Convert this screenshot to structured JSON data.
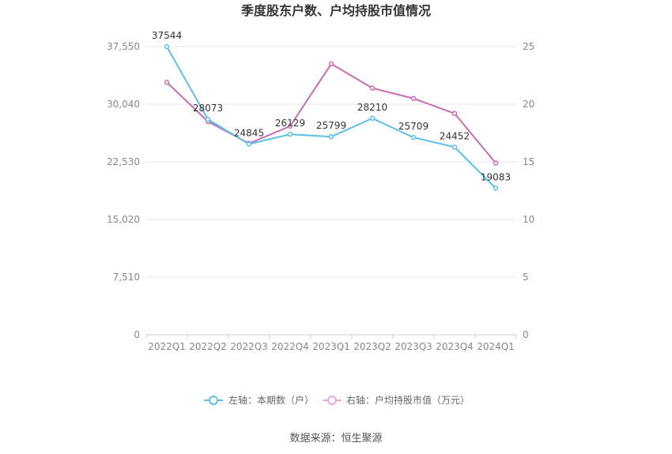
{
  "chart_data": {
    "type": "line",
    "title": "季度股东户数、户均持股市值情况",
    "categories": [
      "2022Q1",
      "2022Q2",
      "2022Q3",
      "2022Q4",
      "2023Q1",
      "2023Q2",
      "2023Q3",
      "2023Q4",
      "2024Q1"
    ],
    "left_axis": {
      "min": 0,
      "max": 37550,
      "ticks": [
        "0",
        "7,510",
        "15,020",
        "22,530",
        "30,040",
        "37,550"
      ]
    },
    "right_axis": {
      "min": 0,
      "max": 25,
      "ticks": [
        "0",
        "5",
        "10",
        "15",
        "20",
        "25"
      ]
    },
    "series": [
      {
        "name": "左轴：本期数（户）",
        "axis": "left",
        "color": "#5bc0eb",
        "values": [
          37544,
          28073,
          24845,
          26129,
          25799,
          28210,
          25709,
          24452,
          19083
        ],
        "labels": [
          "37544",
          "28073",
          "24845",
          "26129",
          "25799",
          "28210",
          "25709",
          "24452",
          "19083"
        ]
      },
      {
        "name": "右轴：户均持股市值（万元）",
        "axis": "right",
        "color": "#cc6bb0",
        "values": [
          21.9,
          18.5,
          16.6,
          18.1,
          23.5,
          21.4,
          20.5,
          19.2,
          14.9
        ]
      }
    ],
    "legend_position": "bottom",
    "grid": true
  },
  "source": "数据来源：恒生聚源"
}
